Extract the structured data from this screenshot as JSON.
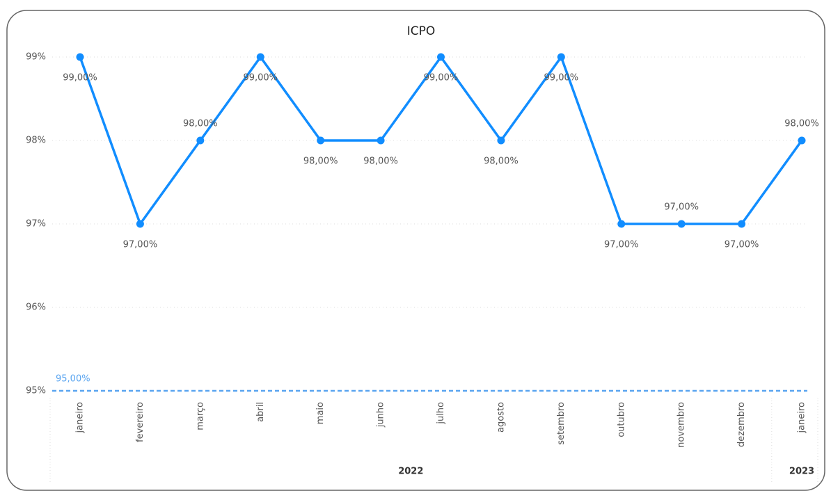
{
  "chart_data": {
    "type": "line",
    "title": "ICPO",
    "categories": [
      "janeiro",
      "fevereiro",
      "março",
      "abril",
      "maio",
      "junho",
      "julho",
      "agosto",
      "setembro",
      "outubro",
      "novembro",
      "dezembro",
      "janeiro"
    ],
    "values": [
      99,
      97,
      98,
      99,
      98,
      98,
      99,
      98,
      99,
      97,
      97,
      97,
      98
    ],
    "value_labels": [
      "99,00%",
      "97,00%",
      "98,00%",
      "99,00%",
      "98,00%",
      "98,00%",
      "99,00%",
      "98,00%",
      "99,00%",
      "97,00%",
      "97,00%",
      "97,00%",
      "98,00%"
    ],
    "color": "#118dff",
    "x_groups": [
      {
        "label": "2022",
        "size": 12
      },
      {
        "label": "2023",
        "size": 1
      }
    ],
    "ylim": [
      95,
      99
    ],
    "yticks": [
      {
        "value": 95,
        "label": "95%"
      },
      {
        "value": 96,
        "label": "96%"
      },
      {
        "value": 97,
        "label": "97%"
      },
      {
        "value": 98,
        "label": "98%"
      },
      {
        "value": 99,
        "label": "99%"
      }
    ],
    "grid": true,
    "reference_line": {
      "value": 95,
      "label": "95,00%",
      "color": "#5aa5f0"
    }
  }
}
